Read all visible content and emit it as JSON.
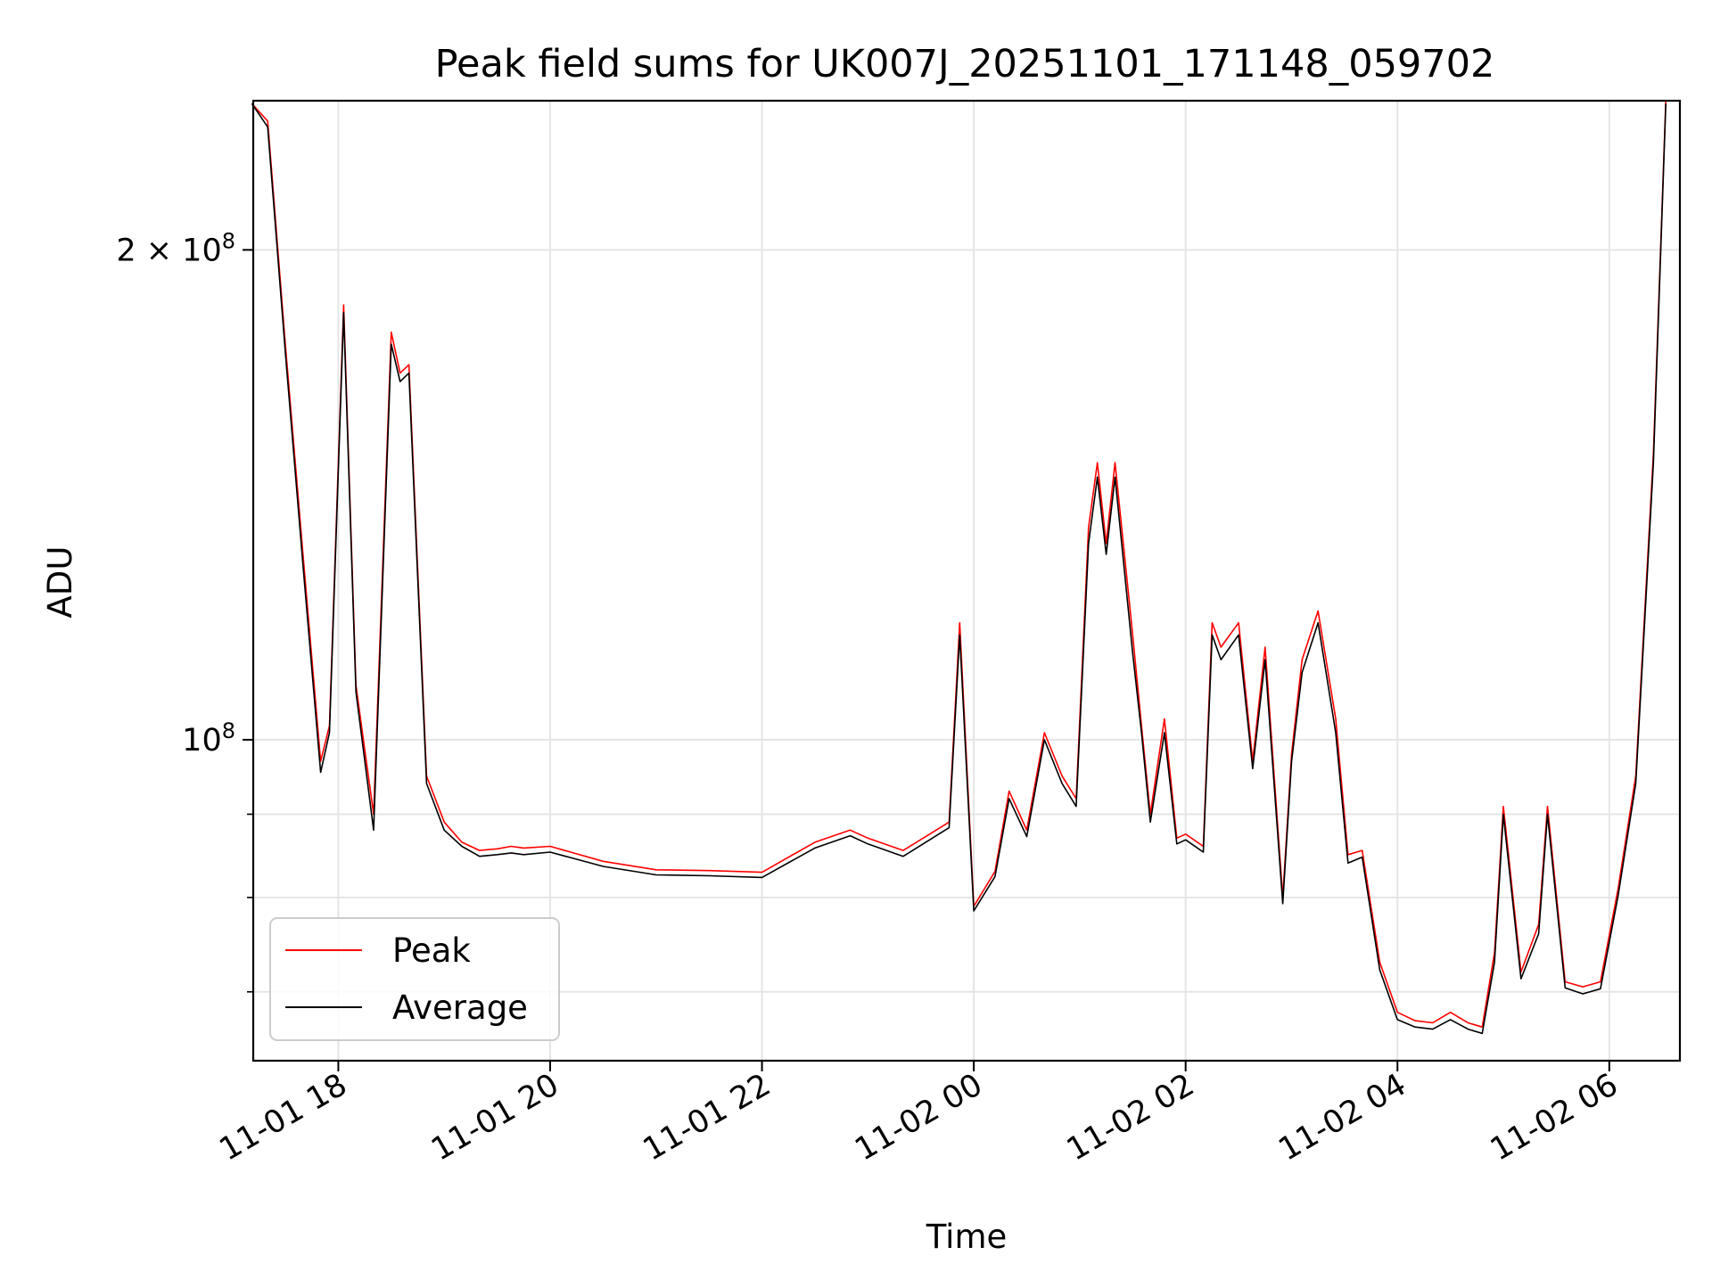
{
  "chart_data": {
    "type": "line",
    "title": "Peak field sums for UK007J_20251101_171148_059702",
    "xlabel": "Time",
    "ylabel": "ADU",
    "y_scale": "log",
    "ylim": [
      63500000,
      247000000
    ],
    "xlim": [
      "2025-11-01 17:11:48",
      "2025-11-02 06:40:00"
    ],
    "x_tick_labels": [
      "11-01 18",
      "11-01 20",
      "11-01 22",
      "11-02 00",
      "11-02 02",
      "11-02 04",
      "11-02 06"
    ],
    "x_ticks": [
      "2025-11-01 18:00",
      "2025-11-01 20:00",
      "2025-11-01 22:00",
      "2025-11-02 00:00",
      "2025-11-02 02:00",
      "2025-11-02 04:00",
      "2025-11-02 06:00"
    ],
    "y_major_ticks": [
      100000000,
      200000000
    ],
    "y_minor_ticks": [
      70000000,
      80000000,
      90000000
    ],
    "y_tick_labels": [
      {
        "base": "10",
        "exp": "8",
        "coef": ""
      },
      {
        "base": "10",
        "exp": "8",
        "coef": "2 × "
      }
    ],
    "grid": true,
    "legend_position": "lower-left",
    "legend": [
      "Peak",
      "Average"
    ],
    "series": [
      {
        "name": "Peak",
        "color": "#ff0000",
        "x": [
          "2025-11-01 17:11",
          "2025-11-01 17:20",
          "2025-11-01 17:30",
          "2025-11-01 17:40",
          "2025-11-01 17:50",
          "2025-11-01 17:55",
          "2025-11-01 18:03",
          "2025-11-01 18:10",
          "2025-11-01 18:20",
          "2025-11-01 18:30",
          "2025-11-01 18:35",
          "2025-11-01 18:40",
          "2025-11-01 18:50",
          "2025-11-01 19:00",
          "2025-11-01 19:10",
          "2025-11-01 19:20",
          "2025-11-01 19:30",
          "2025-11-01 19:38",
          "2025-11-01 19:45",
          "2025-11-01 20:00",
          "2025-11-01 20:30",
          "2025-11-01 21:00",
          "2025-11-01 21:30",
          "2025-11-01 22:00",
          "2025-11-01 22:30",
          "2025-11-01 22:50",
          "2025-11-01 23:00",
          "2025-11-01 23:20",
          "2025-11-01 23:35",
          "2025-11-01 23:46",
          "2025-11-01 23:52",
          "2025-11-02 00:00",
          "2025-11-02 00:12",
          "2025-11-02 00:20",
          "2025-11-02 00:30",
          "2025-11-02 00:40",
          "2025-11-02 00:50",
          "2025-11-02 00:58",
          "2025-11-02 01:05",
          "2025-11-02 01:10",
          "2025-11-02 01:15",
          "2025-11-02 01:20",
          "2025-11-02 01:30",
          "2025-11-02 01:35",
          "2025-11-02 01:40",
          "2025-11-02 01:48",
          "2025-11-02 01:55",
          "2025-11-02 02:00",
          "2025-11-02 02:10",
          "2025-11-02 02:15",
          "2025-11-02 02:20",
          "2025-11-02 02:30",
          "2025-11-02 02:38",
          "2025-11-02 02:45",
          "2025-11-02 02:55",
          "2025-11-02 03:00",
          "2025-11-02 03:06",
          "2025-11-02 03:15",
          "2025-11-02 03:25",
          "2025-11-02 03:32",
          "2025-11-02 03:40",
          "2025-11-02 03:50",
          "2025-11-02 04:00",
          "2025-11-02 04:10",
          "2025-11-02 04:20",
          "2025-11-02 04:30",
          "2025-11-02 04:40",
          "2025-11-02 04:48",
          "2025-11-02 04:55",
          "2025-11-02 05:00",
          "2025-11-02 05:10",
          "2025-11-02 05:20",
          "2025-11-02 05:25",
          "2025-11-02 05:35",
          "2025-11-02 05:45",
          "2025-11-02 05:55",
          "2025-11-02 06:05",
          "2025-11-02 06:15",
          "2025-11-02 06:25",
          "2025-11-02 06:32"
        ],
        "values": [
          246000000,
          240000000,
          175000000,
          130000000,
          97000000,
          102000000,
          185000000,
          108000000,
          90000000,
          178000000,
          168000000,
          170000000,
          95000000,
          89000000,
          86500000,
          85500000,
          85700000,
          86000000,
          85800000,
          86000000,
          84200000,
          83200000,
          83100000,
          82900000,
          86500000,
          88000000,
          87000000,
          85500000,
          87500000,
          89000000,
          118000000,
          79000000,
          83000000,
          93000000,
          88000000,
          101000000,
          95000000,
          92000000,
          135000000,
          148000000,
          132000000,
          148000000,
          116000000,
          102000000,
          90000000,
          103000000,
          87000000,
          87500000,
          86000000,
          118000000,
          114000000,
          118000000,
          97000000,
          114000000,
          80000000,
          98000000,
          112000000,
          120000000,
          103000000,
          85000000,
          85500000,
          73000000,
          68000000,
          67200000,
          67000000,
          68000000,
          67000000,
          66600000,
          74000000,
          91000000,
          72000000,
          77000000,
          91000000,
          71000000,
          70500000,
          71000000,
          81000000,
          95000000,
          150000000,
          247000000
        ]
      },
      {
        "name": "Average",
        "color": "#000000",
        "x": [
          "2025-11-01 17:11",
          "2025-11-01 17:20",
          "2025-11-01 17:30",
          "2025-11-01 17:40",
          "2025-11-01 17:50",
          "2025-11-01 17:55",
          "2025-11-01 18:03",
          "2025-11-01 18:10",
          "2025-11-01 18:20",
          "2025-11-01 18:30",
          "2025-11-01 18:35",
          "2025-11-01 18:40",
          "2025-11-01 18:50",
          "2025-11-01 19:00",
          "2025-11-01 19:10",
          "2025-11-01 19:20",
          "2025-11-01 19:30",
          "2025-11-01 19:38",
          "2025-11-01 19:45",
          "2025-11-01 20:00",
          "2025-11-01 20:30",
          "2025-11-01 21:00",
          "2025-11-01 21:30",
          "2025-11-01 22:00",
          "2025-11-01 22:30",
          "2025-11-01 22:50",
          "2025-11-01 23:00",
          "2025-11-01 23:20",
          "2025-11-01 23:35",
          "2025-11-01 23:46",
          "2025-11-01 23:52",
          "2025-11-02 00:00",
          "2025-11-02 00:12",
          "2025-11-02 00:20",
          "2025-11-02 00:30",
          "2025-11-02 00:40",
          "2025-11-02 00:50",
          "2025-11-02 00:58",
          "2025-11-02 01:05",
          "2025-11-02 01:10",
          "2025-11-02 01:15",
          "2025-11-02 01:20",
          "2025-11-02 01:30",
          "2025-11-02 01:35",
          "2025-11-02 01:40",
          "2025-11-02 01:48",
          "2025-11-02 01:55",
          "2025-11-02 02:00",
          "2025-11-02 02:10",
          "2025-11-02 02:15",
          "2025-11-02 02:20",
          "2025-11-02 02:30",
          "2025-11-02 02:38",
          "2025-11-02 02:45",
          "2025-11-02 02:55",
          "2025-11-02 03:00",
          "2025-11-02 03:06",
          "2025-11-02 03:15",
          "2025-11-02 03:25",
          "2025-11-02 03:32",
          "2025-11-02 03:40",
          "2025-11-02 03:50",
          "2025-11-02 04:00",
          "2025-11-02 04:10",
          "2025-11-02 04:20",
          "2025-11-02 04:30",
          "2025-11-02 04:40",
          "2025-11-02 04:48",
          "2025-11-02 04:55",
          "2025-11-02 05:00",
          "2025-11-02 05:10",
          "2025-11-02 05:20",
          "2025-11-02 05:25",
          "2025-11-02 05:35",
          "2025-11-02 05:45",
          "2025-11-02 05:55",
          "2025-11-02 06:05",
          "2025-11-02 06:15",
          "2025-11-02 06:25",
          "2025-11-02 06:32"
        ],
        "values": [
          246000000,
          238000000,
          173000000,
          128000000,
          95500000,
          101000000,
          183000000,
          107000000,
          88000000,
          175000000,
          166000000,
          168000000,
          94000000,
          88000000,
          86000000,
          84800000,
          85000000,
          85200000,
          85000000,
          85300000,
          83600000,
          82600000,
          82500000,
          82300000,
          85800000,
          87300000,
          86300000,
          84800000,
          86800000,
          88300000,
          116000000,
          78500000,
          82400000,
          92000000,
          87200000,
          100000000,
          94000000,
          91000000,
          132000000,
          145000000,
          130000000,
          145000000,
          113000000,
          101000000,
          89000000,
          101000000,
          86300000,
          86800000,
          85300000,
          116000000,
          112000000,
          116000000,
          96000000,
          112000000,
          79300000,
          97000000,
          110000000,
          118000000,
          101000000,
          84000000,
          84700000,
          72200000,
          67300000,
          66600000,
          66400000,
          67300000,
          66400000,
          66000000,
          73000000,
          90000000,
          71300000,
          76000000,
          90000000,
          70400000,
          69800000,
          70300000,
          80200000,
          94000000,
          148000000,
          246000000
        ]
      }
    ]
  }
}
